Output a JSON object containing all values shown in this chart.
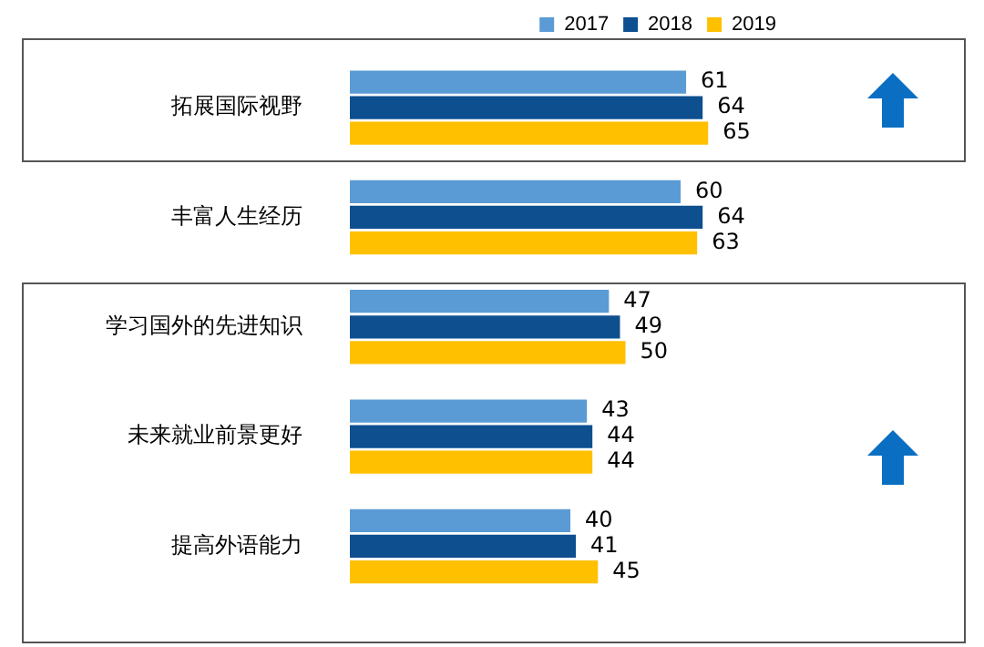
{
  "chart_data": {
    "type": "bar",
    "orientation": "horizontal",
    "categories": [
      "拓展国际视野",
      "丰富人生经历",
      "学习国外的先进知识",
      "未来就业前景更好",
      "提高外语能力"
    ],
    "series": [
      {
        "name": "2017",
        "color": "#5b9bd5",
        "values": [
          61,
          60,
          47,
          43,
          40
        ]
      },
      {
        "name": "2018",
        "color": "#0d4f8f",
        "values": [
          64,
          64,
          49,
          44,
          41
        ]
      },
      {
        "name": "2019",
        "color": "#ffc000",
        "values": [
          65,
          63,
          50,
          44,
          45
        ]
      }
    ],
    "data_labels": true,
    "legend": "top right"
  }
}
